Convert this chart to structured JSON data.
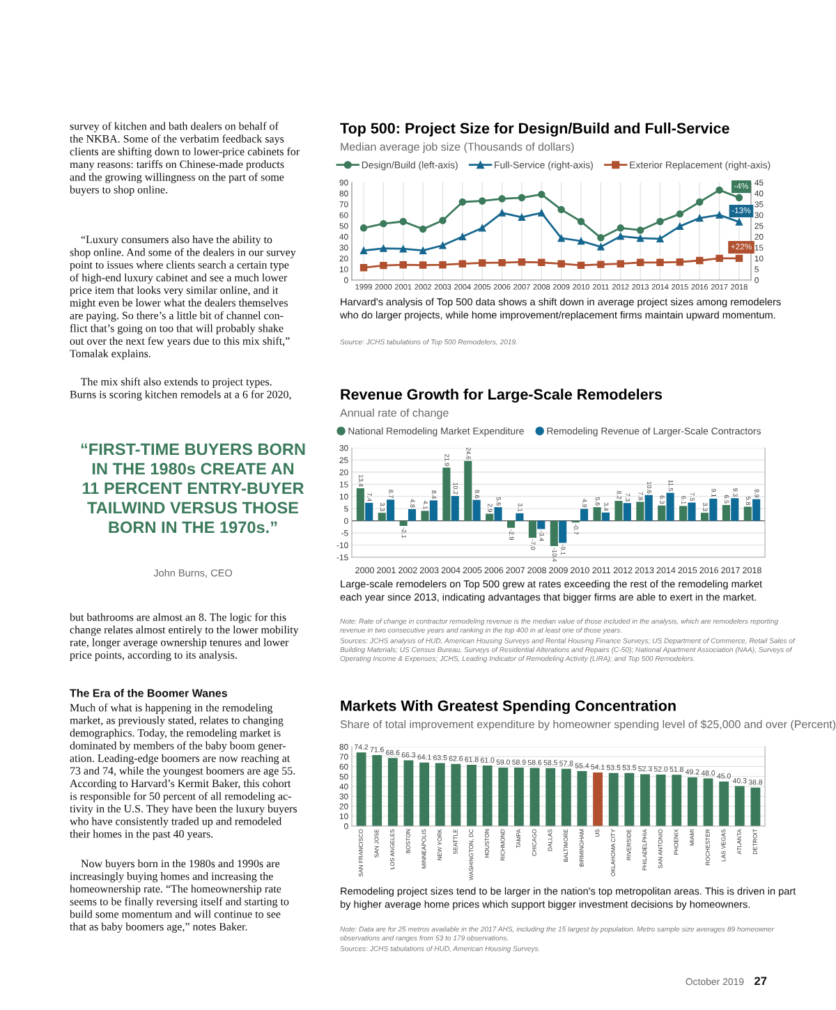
{
  "chart_data": [
    {
      "type": "other",
      "annotations": [
        "survey of kitchen and bath dealers on behalf of\nthe NKBA. Some of the verbatim feedback says\nclients are shifting down to lower-price cabinets for\nmany reasons: tariffs on Chinese-made products\nand the growing willingness on the part of some\nbuyers to shop online.",
        "    “Luxury consumers also have the ability to\nshop online. And some of the dealers in our survey\npoint to issues where clients search a certain type\nof high-end luxury cabinet and see a much lower\nprice item that looks very similar online, and it\nmight even be lower what the dealers themselves\nare paying. So there’s a little bit of channel con-\nflict that’s going on too that will probably shake\nout over the next few years due to this mix shift,”\nTomalak explains.",
        "    The mix shift also extends to project types.\nBurns is scoring kitchen remodels at a 6 for 2020,",
        "“FIRST-TIME BUYERS BORN\nIN THE 1980s CREATE AN\n11 PERCENT ENTRY-BUYER\nTAILWIND VERSUS THOSE\nBORN IN THE 1970s.”",
        "John Burns, CEO",
        "but bathrooms are almost an 8. The logic for this\nchange relates almost entirely to the lower mobility\nrate, longer average ownership tenures and lower\nprice points, according to its analysis.",
        "The Era of the Boomer Wanes",
        "Much of what is happening in the remodeling\nmarket, as previously stated, relates to changing\ndemographics. Today, the remodeling market is\ndominated by members of the baby boom gener-\nation. Leading-edge boomers are now reaching at\n73 and 74, while the youngest boomers are age 55.\nAccording to Harvard’s Kermit Baker, this cohort\nis responsible for 50 percent of all remodeling ac-\ntivity in the U.S. They have been the luxury buyers\nwho have consistently traded up and remodeled\ntheir homes in the past 40 years.",
        "    Now buyers born in the 1980s and 1990s are\nincreasingly buying homes and increasing the\nhomeownership rate. “The homeownership rate\nseems to be finally reversing itself and starting to\nbuild some momentum and will continue to see\nthat as baby boomers age,” notes Baker.",
        "October 2019",
        "27"
      ]
    },
    {
      "type": "line",
      "title": "Top 500: Project Size for Design/Build and Full-Service",
      "subtitle": "Median average job size (Thousands of dollars)",
      "categories": [
        "1999",
        "2000",
        "2001",
        "2002",
        "2003",
        "2004",
        "2005",
        "2006",
        "2007",
        "2008",
        "2009",
        "2010",
        "2011",
        "2012",
        "2013",
        "2014",
        "2015",
        "2016",
        "2017",
        "2018"
      ],
      "series": [
        {
          "name": "Design/Build (left-axis)",
          "color": "#3b7a5b",
          "marker": "circle",
          "values": [
            48,
            52,
            54,
            47,
            55,
            72,
            73,
            75,
            76,
            79,
            65,
            54,
            39,
            48,
            46,
            54,
            61,
            72,
            83,
            76
          ]
        },
        {
          "name": "Full-Service (right-axis)",
          "color": "#16678f",
          "marker": "triangle",
          "axis": "y2",
          "values": [
            13.6,
            14.6,
            14.4,
            13.6,
            16,
            20,
            24,
            31,
            29,
            31,
            19.3,
            18,
            15.3,
            20.2,
            19.3,
            19,
            24.8,
            28.6,
            30,
            26.8
          ]
        },
        {
          "name": "Exterior Replacement (right-axis)",
          "color": "#b0502f",
          "marker": "square",
          "axis": "y2",
          "values": [
            5.7,
            6.7,
            7,
            6.9,
            7,
            7.5,
            7.9,
            8,
            8.3,
            8.1,
            7.5,
            6.8,
            7.2,
            7.5,
            8.1,
            8.1,
            8.3,
            9,
            10,
            10
          ]
        }
      ],
      "ylim": [
        0,
        90
      ],
      "yticks": [
        0,
        10,
        20,
        30,
        40,
        50,
        60,
        70,
        80,
        90
      ],
      "y2lim": [
        0,
        45
      ],
      "y2ticks": [
        0,
        5,
        10,
        15,
        20,
        25,
        30,
        35,
        40,
        45
      ],
      "grid": "x",
      "legend": "top left",
      "line_style": "solid",
      "annotations": [
        "-4%",
        "-13%",
        "+22%",
        "Harvard's analysis of Top 500 data shows a shift down in average project sizes among remodelers\nwho do larger projects, while home improvement/replacement firms maintain upward momentum.",
        "Source: JCHS tabulations of Top 500 Remodelers, 2019."
      ]
    },
    {
      "type": "bar",
      "title": "Revenue Growth for Large-Scale Remodelers",
      "subtitle": "Annual rate of change",
      "categories": [
        "2000",
        "2001",
        "2002",
        "2003",
        "2004",
        "2005",
        "2006",
        "2007",
        "2008",
        "2009",
        "2010",
        "2011",
        "2012",
        "2013",
        "2014",
        "2015",
        "2016",
        "2017",
        "2018"
      ],
      "series": [
        {
          "name": "National Remodeling Market Expenditure",
          "color": "#3b7a5b",
          "values": [
            13.4,
            3.3,
            -2.1,
            4.1,
            21.9,
            24.6,
            2.9,
            -2.9,
            -7.0,
            -10.4,
            -0.7,
            5.6,
            8.2,
            7.8,
            6.3,
            6.1,
            3.3,
            6.5,
            5.8
          ],
          "value_labels": [
            "13.4",
            "3.3",
            "-2.1",
            "4.1",
            "21.9",
            "24.6",
            "2.9",
            "-2.9",
            "-7.0",
            "-10.4",
            "-0.7",
            "5.6",
            "8.2",
            "7.8",
            "6.3",
            "6.1",
            "3.3",
            "6.5",
            "5.8"
          ]
        },
        {
          "name": "Remodeling Revenue of Larger-Scale Contractors",
          "color": "#0e6a96",
          "values": [
            7.4,
            8.7,
            4.8,
            8.4,
            10.2,
            8.6,
            5.6,
            3.1,
            -3.4,
            -9.1,
            4.9,
            3.4,
            7.3,
            10.6,
            11.5,
            7.5,
            9.1,
            9.3,
            8.9
          ],
          "value_labels": [
            "7.4",
            "8.7",
            "4.8",
            "8.4",
            "10.2",
            "8.6",
            "5.6",
            "3.1",
            "-3.4",
            "-9.1",
            "4.9",
            "3.4",
            "7.3",
            "10.6",
            "11.5",
            "7.5",
            "9.1",
            "9.3",
            "8.9"
          ]
        }
      ],
      "ylim": [
        -15,
        30
      ],
      "yticks": [
        -15,
        -10,
        -5,
        0,
        5,
        10,
        15,
        20,
        25,
        30
      ],
      "grid": "y",
      "legend": "top left",
      "ref_lines": [
        {
          "axis": "y",
          "value": 0,
          "color": "#555555"
        }
      ],
      "annotations": [
        "Large-scale remodelers on Top 500 grew at rates exceeding the rest of the remodeling market\neach year since 2013, indicating advantages that bigger firms are able to exert in the market.",
        "Note: Rate of change in contractor remodeling revenue is the median value of those included in the analysis, which are remodelers reporting\nrevenue in two consecutive years and ranking in the top 400 in at least one of those years.",
        "Sources: JCHS analysis of HUD, American Housing Surveys and Rental Housing Finance Surveys; US Department of Commerce, Retail Sales of\nBuilding Materials; US Census Bureau, Surveys of Residential Alterations and Repairs (C-50); National Apartment Association (NAA), Surveys of\nOperating Income & Expenses; JCHS, Leading Indicator of Remodeling Activity (LIRA); and Top 500 Remodelers."
      ]
    },
    {
      "type": "bar",
      "title": "Markets With Greatest Spending Concentration",
      "subtitle": "Share of total improvement expenditure by homeowner spending level of $25,000 and over (Percent)",
      "categories": [
        "SAN FRANCISCO",
        "SAN JOSE",
        "LOS ANGELES",
        "BOSTON",
        "MINNEAPOLIS",
        "NEW YORK",
        "SEATTLE",
        "WASHINGTON, DC",
        "HOUSTON",
        "RICHMOND",
        "TAMPA",
        "CHICAGO",
        "DALLAS",
        "BALTIMORE",
        "BIRMINGHAM",
        "US",
        "OKLAHOMA CITY",
        "RIVERSIDE",
        "PHILADELPHIA",
        "SAN ANTONIO",
        "PHOENIX",
        "MIAMI",
        "ROCHESTER",
        "LAS VEGAS",
        "ATLANTA",
        "DETROIT"
      ],
      "values": [
        74.2,
        71.6,
        68.6,
        66.3,
        64.1,
        63.5,
        62.6,
        61.8,
        61.0,
        59.0,
        58.9,
        58.6,
        58.5,
        57.8,
        55.4,
        54.1,
        53.5,
        53.5,
        52.3,
        52.0,
        51.8,
        49.2,
        48.0,
        45.0,
        40.3,
        38.8
      ],
      "value_labels": [
        "74.2",
        "71.6",
        "68.6",
        "66.3",
        "64.1",
        "63.5",
        "62.6",
        "61.8",
        "61.0",
        "59.0",
        "58.9",
        "58.6",
        "58.5",
        "57.8",
        "55.4",
        "54.1",
        "53.5",
        "53.5",
        "52.3",
        "52.0",
        "51.8",
        "49.2",
        "48.0",
        "45.0",
        "40.3",
        "38.8"
      ],
      "colors": [
        "#3b7a5b",
        "#3b7a5b",
        "#3b7a5b",
        "#3b7a5b",
        "#3b7a5b",
        "#3b7a5b",
        "#3b7a5b",
        "#3b7a5b",
        "#3b7a5b",
        "#3b7a5b",
        "#3b7a5b",
        "#3b7a5b",
        "#3b7a5b",
        "#3b7a5b",
        "#3b7a5b",
        "#b0502f",
        "#3b7a5b",
        "#3b7a5b",
        "#3b7a5b",
        "#3b7a5b",
        "#3b7a5b",
        "#3b7a5b",
        "#3b7a5b",
        "#3b7a5b",
        "#3b7a5b",
        "#3b7a5b"
      ],
      "ylim": [
        0,
        80
      ],
      "yticks": [
        0,
        10,
        20,
        30,
        40,
        50,
        60,
        70,
        80
      ],
      "grid": "y",
      "annotations": [
        "Remodeling project sizes tend to be larger in the nation's top metropolitan areas. This is driven in part\nby higher average home prices which support bigger investment decisions by homeowners.",
        "Note: Data are for 25 metros available in the 2017 AHS, including the 15 largest by population. Metro sample size averages 89 homeowner\nobservations and ranges from 53 to 179 observations.",
        "Sources: JCHS tabulations of HUD, American Housing Surveys."
      ]
    }
  ]
}
